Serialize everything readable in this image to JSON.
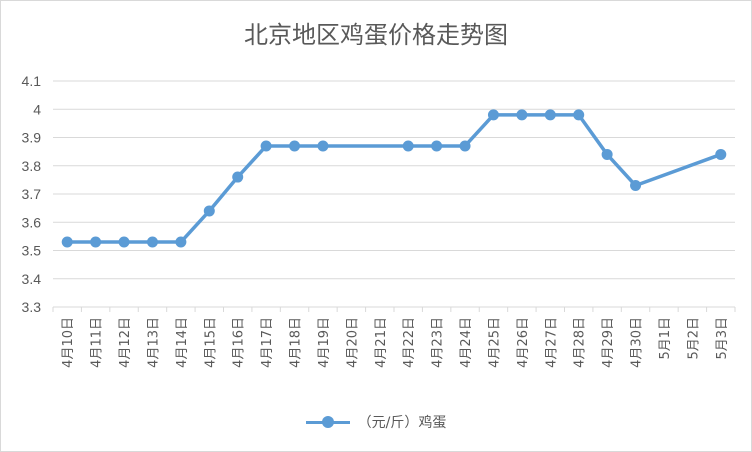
{
  "chart_data": {
    "type": "line",
    "title": "北京地区鸡蛋价格走势图",
    "xlabel": "",
    "ylabel": "",
    "ylim": [
      3.3,
      4.1
    ],
    "yticks": [
      "3.3",
      "3.4",
      "3.5",
      "3.6",
      "3.7",
      "3.8",
      "3.9",
      "4",
      "4.1"
    ],
    "grid": true,
    "legend_position": "bottom",
    "categories": [
      "4月10日",
      "4月11日",
      "4月12日",
      "4月13日",
      "4月14日",
      "4月15日",
      "4月16日",
      "4月17日",
      "4月18日",
      "4月19日",
      "4月20日",
      "4月21日",
      "4月22日",
      "4月23日",
      "4月24日",
      "4月25日",
      "4月26日",
      "4月27日",
      "4月28日",
      "4月29日",
      "4月30日",
      "5月1日",
      "5月2日",
      "5月3日"
    ],
    "series": [
      {
        "name": "（元/斤）鸡蛋",
        "color": "#5b9bd5",
        "values": [
          3.53,
          3.53,
          3.53,
          3.53,
          3.53,
          3.64,
          3.76,
          3.87,
          3.87,
          3.87,
          null,
          null,
          3.87,
          3.87,
          3.87,
          3.98,
          3.98,
          3.98,
          3.98,
          3.84,
          3.73,
          null,
          null,
          3.84
        ]
      }
    ]
  }
}
